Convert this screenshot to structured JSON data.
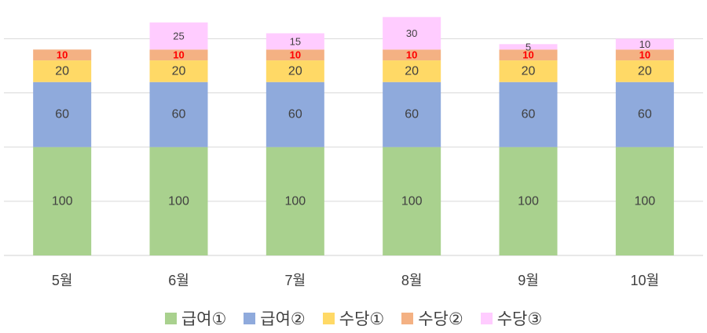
{
  "chart_data": {
    "type": "bar",
    "stacked": true,
    "title": "",
    "xlabel": "",
    "ylabel": "",
    "ylim": [
      0,
      220
    ],
    "grid": true,
    "legend_position": "bottom",
    "categories": [
      "5월",
      "6월",
      "7월",
      "8월",
      "9월",
      "10월"
    ],
    "series": [
      {
        "name": "급여①",
        "color": "#a9d18e",
        "label_color": "#404040",
        "values": [
          100,
          100,
          100,
          100,
          100,
          100
        ]
      },
      {
        "name": "급여②",
        "color": "#8faadc",
        "label_color": "#404040",
        "values": [
          60,
          60,
          60,
          60,
          60,
          60
        ]
      },
      {
        "name": "수당①",
        "color": "#ffd966",
        "label_color": "#404040",
        "values": [
          20,
          20,
          20,
          20,
          20,
          20
        ]
      },
      {
        "name": "수당②",
        "color": "#f4b183",
        "label_color": "#ff0000",
        "values": [
          10,
          10,
          10,
          10,
          10,
          10
        ]
      },
      {
        "name": "수당③",
        "color": "#ffccff",
        "label_color": "#404040",
        "values": [
          null,
          25,
          15,
          30,
          5,
          10
        ]
      }
    ]
  }
}
